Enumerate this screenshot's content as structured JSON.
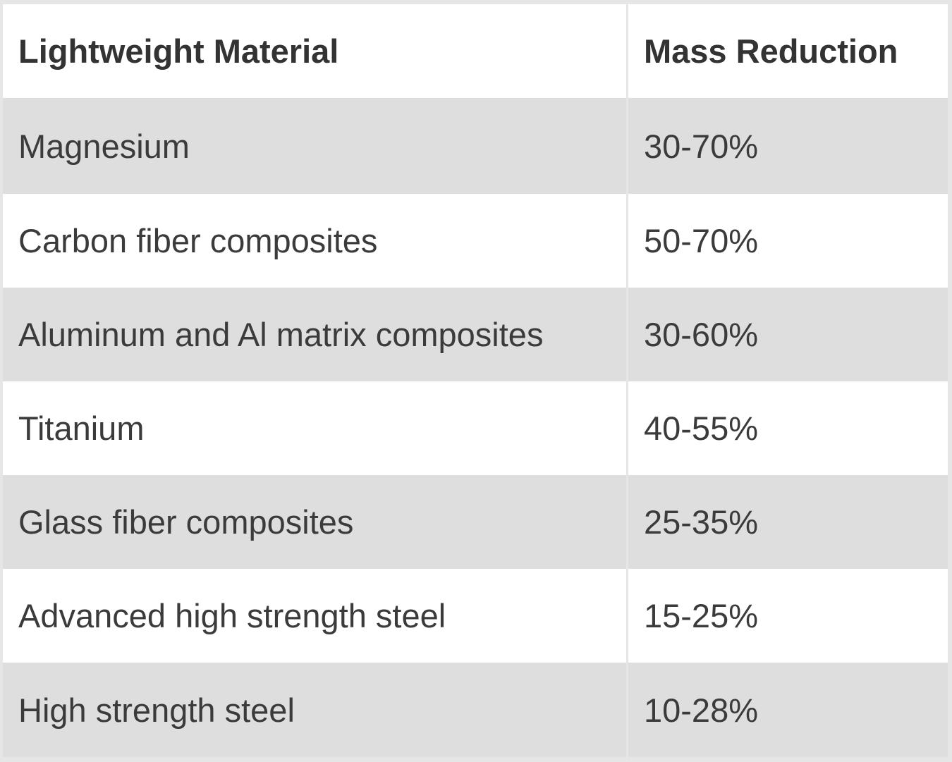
{
  "table": {
    "headers": [
      "Lightweight Material",
      "Mass Reduction"
    ],
    "rows": [
      {
        "material": "Magnesium",
        "reduction": "30-70%"
      },
      {
        "material": "Carbon fiber composites",
        "reduction": "50-70%"
      },
      {
        "material": "Aluminum and Al matrix composites",
        "reduction": "30-60%"
      },
      {
        "material": "Titanium",
        "reduction": "40-55%"
      },
      {
        "material": "Glass fiber composites",
        "reduction": "25-35%"
      },
      {
        "material": "Advanced high strength steel",
        "reduction": "15-25%"
      },
      {
        "material": "High strength steel",
        "reduction": "10-28%"
      }
    ]
  },
  "colors": {
    "row_shaded": "#dedede",
    "row_plain": "#ffffff",
    "text": "#3b3b3b",
    "border": "#e6e6e6"
  }
}
